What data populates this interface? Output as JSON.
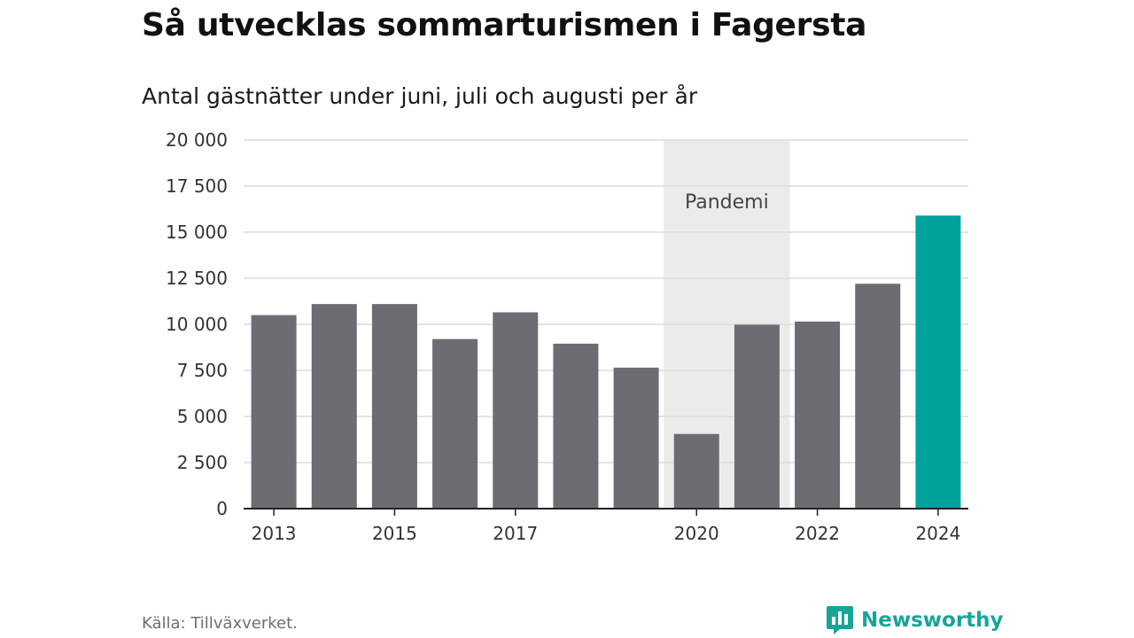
{
  "header": {
    "title": "Så utvecklas sommarturismen i Fagersta",
    "subtitle": "Antal gästnätter under juni, juli och augusti per år"
  },
  "footer": {
    "source": "Källa: Tillväxverket.",
    "brand": "Newsworthy"
  },
  "colors": {
    "bar": "#6d6c72",
    "highlight": "#00a39b",
    "band": "#ebebeb",
    "grid": "#dcdcdc",
    "brand": "#17a599"
  },
  "chart_data": {
    "type": "bar",
    "title": "Så utvecklas sommarturismen i Fagersta",
    "subtitle": "Antal gästnätter under juni, juli och augusti per år",
    "categories": [
      "2013",
      "2014",
      "2015",
      "2016",
      "2017",
      "2018",
      "2019",
      "2020",
      "2021",
      "2022",
      "2023",
      "2024"
    ],
    "values": [
      10500,
      11100,
      11100,
      9200,
      10650,
      8950,
      7650,
      4050,
      9980,
      10150,
      12200,
      15900
    ],
    "highlight": [
      "2024"
    ],
    "x_tick_labels": [
      "2013",
      "2015",
      "2017",
      "2020",
      "2022",
      "2024"
    ],
    "y_ticks": [
      0,
      2500,
      5000,
      7500,
      10000,
      12500,
      15000,
      17500,
      20000
    ],
    "y_tick_labels": [
      "0",
      "2 500",
      "5 000",
      "7 500",
      "10 000",
      "12 500",
      "15 000",
      "17 500",
      "20 000"
    ],
    "ylim": [
      0,
      20000
    ],
    "grid": true,
    "annotation": {
      "label": "Pandemi",
      "from": "2020",
      "to": "2021"
    }
  }
}
